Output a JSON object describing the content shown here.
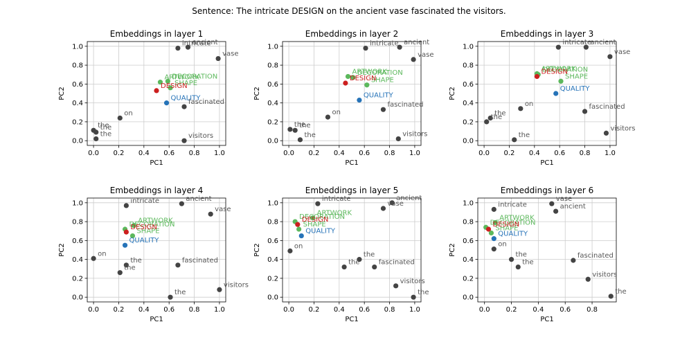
{
  "suptitle": "Sentence: The intricate DESIGN on the ancient vase fascinated the visitors.",
  "colors": {
    "context": "#444444",
    "target": "#cc1f1f",
    "related": "#5cb85c",
    "contrast": "#2673b8",
    "grid": "#cccccc"
  },
  "chart_data": [
    {
      "type": "scatter",
      "title": "Embeddings in layer 1",
      "xlabel": "PC1",
      "ylabel": "PC2",
      "xlim": [
        -0.05,
        1.05
      ],
      "ylim": [
        -0.05,
        1.05
      ],
      "grid": true,
      "xticks": [
        "0.0",
        "0.2",
        "0.4",
        "0.6",
        "0.8",
        "1.0"
      ],
      "yticks": [
        "0.0",
        "0.2",
        "0.4",
        "0.6",
        "0.8",
        "1.0"
      ],
      "points": [
        {
          "label": "intricate",
          "x": 0.67,
          "y": 0.98,
          "group": "context"
        },
        {
          "label": "ancient",
          "x": 0.75,
          "y": 0.99,
          "group": "context"
        },
        {
          "label": "vase",
          "x": 0.99,
          "y": 0.87,
          "group": "context"
        },
        {
          "label": "fascinated",
          "x": 0.72,
          "y": 0.36,
          "group": "context"
        },
        {
          "label": "on",
          "x": 0.21,
          "y": 0.24,
          "group": "context"
        },
        {
          "label": "the",
          "x": 0.0,
          "y": 0.11,
          "group": "context"
        },
        {
          "label": "the",
          "x": 0.02,
          "y": 0.09,
          "group": "context"
        },
        {
          "label": "the",
          "x": 0.02,
          "y": 0.02,
          "group": "context"
        },
        {
          "label": "visitors",
          "x": 0.72,
          "y": 0.0,
          "group": "context"
        },
        {
          "label": "ARTWORK",
          "x": 0.53,
          "y": 0.62,
          "group": "related"
        },
        {
          "label": "DECORATION",
          "x": 0.59,
          "y": 0.63,
          "group": "related"
        },
        {
          "label": "SHAPE",
          "x": 0.61,
          "y": 0.56,
          "group": "related"
        },
        {
          "label": "DESIGN",
          "x": 0.5,
          "y": 0.53,
          "group": "target"
        },
        {
          "label": "QUALITY",
          "x": 0.58,
          "y": 0.4,
          "group": "contrast"
        }
      ]
    },
    {
      "type": "scatter",
      "title": "Embeddings in layer 2",
      "xlabel": "PC1",
      "ylabel": "PC2",
      "xlim": [
        -0.05,
        1.05
      ],
      "ylim": [
        -0.05,
        1.05
      ],
      "grid": true,
      "xticks": [
        "0.0",
        "0.2",
        "0.4",
        "0.6",
        "0.8",
        "1.0"
      ],
      "yticks": [
        "0.0",
        "0.2",
        "0.4",
        "0.6",
        "0.8",
        "1.0"
      ],
      "points": [
        {
          "label": "intricate",
          "x": 0.61,
          "y": 0.98,
          "group": "context"
        },
        {
          "label": "ancient",
          "x": 0.88,
          "y": 0.99,
          "group": "context"
        },
        {
          "label": "vase",
          "x": 0.99,
          "y": 0.86,
          "group": "context"
        },
        {
          "label": "fascinated",
          "x": 0.75,
          "y": 0.33,
          "group": "context"
        },
        {
          "label": "on",
          "x": 0.31,
          "y": 0.25,
          "group": "context"
        },
        {
          "label": "the",
          "x": 0.01,
          "y": 0.12,
          "group": "context"
        },
        {
          "label": "the",
          "x": 0.05,
          "y": 0.11,
          "group": "context"
        },
        {
          "label": "the",
          "x": 0.09,
          "y": 0.01,
          "group": "context"
        },
        {
          "label": "visitors",
          "x": 0.87,
          "y": 0.02,
          "group": "context"
        },
        {
          "label": "ARTWORK",
          "x": 0.47,
          "y": 0.68,
          "group": "related"
        },
        {
          "label": "DECORATION",
          "x": 0.51,
          "y": 0.67,
          "group": "related"
        },
        {
          "label": "SHAPE",
          "x": 0.62,
          "y": 0.59,
          "group": "related"
        },
        {
          "label": "DESIGN",
          "x": 0.45,
          "y": 0.61,
          "group": "target"
        },
        {
          "label": "QUALITY",
          "x": 0.56,
          "y": 0.43,
          "group": "contrast"
        }
      ]
    },
    {
      "type": "scatter",
      "title": "Embeddings in layer 3",
      "xlabel": "PC1",
      "ylabel": "PC2",
      "xlim": [
        -0.05,
        1.05
      ],
      "ylim": [
        -0.05,
        1.05
      ],
      "grid": true,
      "xticks": [
        "0.0",
        "0.2",
        "0.4",
        "0.6",
        "0.8",
        "1.0"
      ],
      "yticks": [
        "0.0",
        "0.2",
        "0.4",
        "0.6",
        "0.8",
        "1.0"
      ],
      "points": [
        {
          "label": "intricate",
          "x": 0.59,
          "y": 0.99,
          "group": "context"
        },
        {
          "label": "ancient",
          "x": 0.81,
          "y": 0.99,
          "group": "context"
        },
        {
          "label": "vase",
          "x": 1.0,
          "y": 0.89,
          "group": "context"
        },
        {
          "label": "fascinated",
          "x": 0.8,
          "y": 0.31,
          "group": "context"
        },
        {
          "label": "on",
          "x": 0.29,
          "y": 0.34,
          "group": "context"
        },
        {
          "label": "the",
          "x": 0.05,
          "y": 0.24,
          "group": "context"
        },
        {
          "label": "the",
          "x": 0.02,
          "y": 0.2,
          "group": "context"
        },
        {
          "label": "the",
          "x": 0.24,
          "y": 0.01,
          "group": "context"
        },
        {
          "label": "visitors",
          "x": 0.97,
          "y": 0.08,
          "group": "context"
        },
        {
          "label": "ARTWORK",
          "x": 0.42,
          "y": 0.71,
          "group": "related"
        },
        {
          "label": "DECORATION",
          "x": 0.43,
          "y": 0.7,
          "group": "related"
        },
        {
          "label": "SHAPE",
          "x": 0.61,
          "y": 0.63,
          "group": "related"
        },
        {
          "label": "DESIGN",
          "x": 0.42,
          "y": 0.68,
          "group": "target"
        },
        {
          "label": "QUALITY",
          "x": 0.57,
          "y": 0.5,
          "group": "contrast"
        }
      ]
    },
    {
      "type": "scatter",
      "title": "Embeddings in layer 4",
      "xlabel": "PC1",
      "ylabel": "PC2",
      "xlim": [
        -0.05,
        1.05
      ],
      "ylim": [
        -0.05,
        1.05
      ],
      "grid": true,
      "xticks": [
        "0.0",
        "0.2",
        "0.4",
        "0.6",
        "0.8",
        "1.0"
      ],
      "yticks": [
        "0.0",
        "0.2",
        "0.4",
        "0.6",
        "0.8",
        "1.0"
      ],
      "points": [
        {
          "label": "intricate",
          "x": 0.26,
          "y": 0.97,
          "group": "context"
        },
        {
          "label": "ancient",
          "x": 0.7,
          "y": 0.99,
          "group": "context"
        },
        {
          "label": "vase",
          "x": 0.93,
          "y": 0.88,
          "group": "context"
        },
        {
          "label": "fascinated",
          "x": 0.67,
          "y": 0.34,
          "group": "context"
        },
        {
          "label": "on",
          "x": 0.0,
          "y": 0.41,
          "group": "context"
        },
        {
          "label": "the",
          "x": 0.26,
          "y": 0.34,
          "group": "context"
        },
        {
          "label": "the",
          "x": 0.21,
          "y": 0.26,
          "group": "context"
        },
        {
          "label": "the",
          "x": 0.61,
          "y": 0.0,
          "group": "context"
        },
        {
          "label": "visitors",
          "x": 1.0,
          "y": 0.08,
          "group": "context"
        },
        {
          "label": "ARTWORK",
          "x": 0.32,
          "y": 0.76,
          "group": "related"
        },
        {
          "label": "DECORATION",
          "x": 0.25,
          "y": 0.72,
          "group": "related"
        },
        {
          "label": "SHAPE",
          "x": 0.31,
          "y": 0.65,
          "group": "related"
        },
        {
          "label": "DESIGN",
          "x": 0.26,
          "y": 0.69,
          "group": "target"
        },
        {
          "label": "QUALITY",
          "x": 0.25,
          "y": 0.55,
          "group": "contrast"
        }
      ]
    },
    {
      "type": "scatter",
      "title": "Embeddings in layer 5",
      "xlabel": "PC1",
      "ylabel": "PC2",
      "xlim": [
        -0.05,
        1.05
      ],
      "ylim": [
        -0.05,
        1.05
      ],
      "grid": true,
      "xticks": [
        "0.0",
        "0.2",
        "0.4",
        "0.6",
        "0.8",
        "1.0"
      ],
      "yticks": [
        "0.0",
        "0.2",
        "0.4",
        "0.6",
        "0.8",
        "1.0"
      ],
      "points": [
        {
          "label": "intricate",
          "x": 0.23,
          "y": 0.99,
          "group": "context"
        },
        {
          "label": "ancient",
          "x": 0.82,
          "y": 1.0,
          "group": "context"
        },
        {
          "label": "vase",
          "x": 0.75,
          "y": 0.94,
          "group": "context"
        },
        {
          "label": "fascinated",
          "x": 0.68,
          "y": 0.32,
          "group": "context"
        },
        {
          "label": "on",
          "x": 0.01,
          "y": 0.49,
          "group": "context"
        },
        {
          "label": "the",
          "x": 0.56,
          "y": 0.4,
          "group": "context"
        },
        {
          "label": "the",
          "x": 0.44,
          "y": 0.32,
          "group": "context"
        },
        {
          "label": "the",
          "x": 0.99,
          "y": 0.0,
          "group": "context"
        },
        {
          "label": "visitors",
          "x": 0.85,
          "y": 0.12,
          "group": "context"
        },
        {
          "label": "ARTWORK",
          "x": 0.19,
          "y": 0.84,
          "group": "related"
        },
        {
          "label": "DECORATION",
          "x": 0.05,
          "y": 0.8,
          "group": "related"
        },
        {
          "label": "SHAPE",
          "x": 0.08,
          "y": 0.72,
          "group": "related"
        },
        {
          "label": "DESIGN",
          "x": 0.07,
          "y": 0.77,
          "group": "target"
        },
        {
          "label": "QUALITY",
          "x": 0.1,
          "y": 0.65,
          "group": "contrast"
        }
      ]
    },
    {
      "type": "scatter",
      "title": "Embeddings in layer 6",
      "xlabel": "PC1",
      "ylabel": "PC2",
      "xlim": [
        -0.05,
        0.98
      ],
      "ylim": [
        -0.05,
        1.05
      ],
      "grid": true,
      "xticks": [
        "0.0",
        "0.2",
        "0.4",
        "0.6",
        "0.8"
      ],
      "yticks": [
        "0.0",
        "0.2",
        "0.4",
        "0.6",
        "0.8",
        "1.0"
      ],
      "points": [
        {
          "label": "intricate",
          "x": 0.07,
          "y": 0.93,
          "group": "context"
        },
        {
          "label": "vase",
          "x": 0.5,
          "y": 0.99,
          "group": "context"
        },
        {
          "label": "ancient",
          "x": 0.53,
          "y": 0.91,
          "group": "context"
        },
        {
          "label": "fascinated",
          "x": 0.66,
          "y": 0.39,
          "group": "context"
        },
        {
          "label": "on",
          "x": 0.07,
          "y": 0.51,
          "group": "context"
        },
        {
          "label": "the",
          "x": 0.2,
          "y": 0.4,
          "group": "context"
        },
        {
          "label": "the",
          "x": 0.25,
          "y": 0.32,
          "group": "context"
        },
        {
          "label": "the",
          "x": 0.94,
          "y": 0.01,
          "group": "context"
        },
        {
          "label": "visitors",
          "x": 0.77,
          "y": 0.19,
          "group": "context"
        },
        {
          "label": "ARTWORK",
          "x": 0.08,
          "y": 0.79,
          "group": "related"
        },
        {
          "label": "DECORATION",
          "x": 0.01,
          "y": 0.74,
          "group": "related"
        },
        {
          "label": "SHAPE",
          "x": 0.05,
          "y": 0.68,
          "group": "related"
        },
        {
          "label": "DESIGN",
          "x": 0.03,
          "y": 0.72,
          "group": "target"
        },
        {
          "label": "QUALITY",
          "x": 0.07,
          "y": 0.62,
          "group": "contrast"
        }
      ]
    }
  ]
}
